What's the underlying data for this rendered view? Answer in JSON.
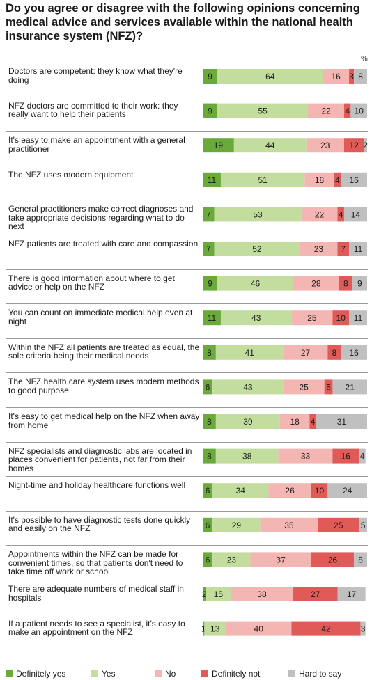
{
  "title": "Do you agree or disagree with the following opinions concerning medical advice and services available within the national health insurance system (NFZ)?",
  "unit_label": "%",
  "chart_data": {
    "type": "bar",
    "stacked": true,
    "orientation": "horizontal",
    "xlim": [
      0,
      100
    ],
    "legend_position": "bottom",
    "categories": [
      "Doctors are competent: they know what they're doing",
      "NFZ doctors are committed to their work: they really want to help their patients",
      "It's easy to make an appointment with a general practitioner",
      "The NFZ uses modern equipment",
      "General practitioners make correct diagnoses and take appropriate decisions regarding what to do next",
      "NFZ patients are treated with care and compassion",
      "There is good information about where to get advice or help on the NFZ",
      "You can count on immediate medical help even at night",
      "Within the NFZ all patients are treated as equal, the sole criteria being their medical needs",
      "The NFZ health care system uses modern methods to good purpose",
      "It's easy to get medical help on the NFZ when away from home",
      "NFZ specialists and diagnostic labs are located in places convenient for patients, not far from their homes",
      "Night-time and holiday healthcare functions well",
      "It's possible to have diagnostic tests done quickly and easily on the NFZ",
      "Appointments within the NFZ can be made for convenient times, so that patients don't need to take time off work or school",
      "There are adequate numbers of medical staff in hospitals",
      "If a patient needs to see a specialist, it's easy to make an appointment on the NFZ"
    ],
    "series": [
      {
        "name": "Definitely yes",
        "color": "#6aaa3a",
        "values": [
          9,
          9,
          19,
          11,
          7,
          7,
          9,
          11,
          8,
          6,
          8,
          8,
          6,
          6,
          6,
          2,
          1
        ]
      },
      {
        "name": "Yes",
        "color": "#c3dd9e",
        "values": [
          64,
          55,
          44,
          51,
          53,
          52,
          46,
          43,
          41,
          43,
          39,
          38,
          34,
          29,
          23,
          15,
          13
        ]
      },
      {
        "name": "No",
        "color": "#f4b6b2",
        "values": [
          16,
          22,
          23,
          18,
          22,
          23,
          28,
          25,
          27,
          25,
          18,
          33,
          26,
          35,
          37,
          38,
          40
        ]
      },
      {
        "name": "Definitely not",
        "color": "#e05a57",
        "values": [
          3,
          4,
          12,
          4,
          4,
          7,
          8,
          10,
          8,
          5,
          4,
          16,
          10,
          25,
          26,
          27,
          42
        ]
      },
      {
        "name": "Hard to say",
        "color": "#c0c0c0",
        "values": [
          8,
          10,
          2,
          16,
          14,
          11,
          9,
          11,
          16,
          21,
          31,
          4,
          24,
          5,
          8,
          17,
          3
        ]
      }
    ]
  }
}
